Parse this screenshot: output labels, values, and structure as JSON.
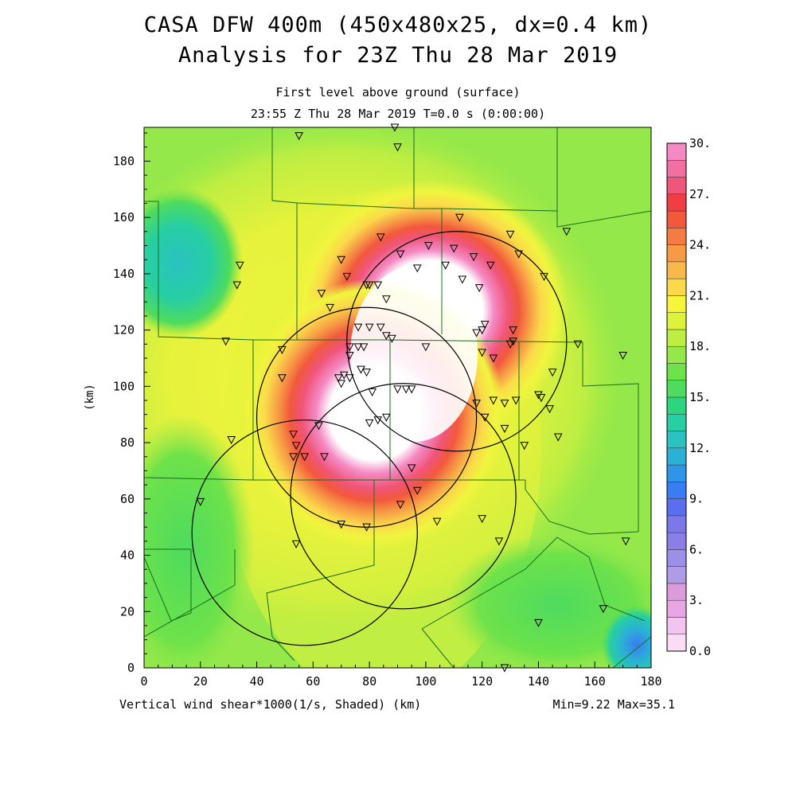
{
  "header": {
    "title_line1": "CASA DFW 400m (450x480x25, dx=0.4 km)",
    "title_line2": "Analysis for 23Z Thu 28 Mar 2019",
    "subtitle_level": "First level above ground (surface)",
    "subtitle_time": "23:55 Z Thu 28 Mar 2019    T=0.0 s (0:00:00)"
  },
  "footer": {
    "variable_label": "Vertical wind shear*1000(1/s, Shaded)  (km)",
    "minmax_label": "Min=9.22 Max=35.1"
  },
  "axes": {
    "x_ticks": [
      "0",
      "20",
      "40",
      "60",
      "80",
      "100",
      "120",
      "140",
      "160",
      "180"
    ],
    "y_ticks": [
      "0",
      "20",
      "40",
      "60",
      "80",
      "100",
      "120",
      "140",
      "160",
      "180"
    ],
    "y_label": "(km)",
    "x_range_km": [
      0,
      180
    ],
    "y_range_km": [
      0,
      192
    ]
  },
  "colorbar": {
    "labels": [
      "0.0",
      "3.",
      "6.",
      "9.",
      "12.",
      "15.",
      "18.",
      "21.",
      "24.",
      "27.",
      "30."
    ],
    "colors": [
      "#fbdcf5",
      "#f2c4ee",
      "#e8a7e4",
      "#dc9bdb",
      "#b09be6",
      "#9b8fe8",
      "#8a7fe6",
      "#7b78ea",
      "#5a6ff0",
      "#3a7cf2",
      "#2e96e6",
      "#2bb0d6",
      "#2ac2c2",
      "#27cfa2",
      "#2dd67c",
      "#4edb5e",
      "#6ee24a",
      "#94e84a",
      "#bdee42",
      "#ddf23a",
      "#f7f53a",
      "#fbd94a",
      "#f9b94a",
      "#f79a46",
      "#f47c42",
      "#f2583c",
      "#f03e42",
      "#f0557a",
      "#f26fa2",
      "#f48ac4"
    ]
  },
  "radar_circles_km": [
    {
      "cx": 111,
      "cy": 116,
      "r": 39
    },
    {
      "cx": 79,
      "cy": 89,
      "r": 39
    },
    {
      "cx": 92,
      "cy": 61,
      "r": 40
    },
    {
      "cx": 57,
      "cy": 48,
      "r": 40
    }
  ],
  "station_markers_km": [
    [
      55,
      189
    ],
    [
      89,
      192
    ],
    [
      90,
      185
    ],
    [
      112,
      160
    ],
    [
      130,
      154
    ],
    [
      150,
      155
    ],
    [
      34,
      143
    ],
    [
      33,
      136
    ],
    [
      70,
      145
    ],
    [
      84,
      153
    ],
    [
      91,
      147
    ],
    [
      97,
      142
    ],
    [
      101,
      150
    ],
    [
      107,
      143
    ],
    [
      110,
      149
    ],
    [
      113,
      138
    ],
    [
      117,
      146
    ],
    [
      119,
      135
    ],
    [
      123,
      143
    ],
    [
      133,
      147
    ],
    [
      142,
      139
    ],
    [
      63,
      133
    ],
    [
      66,
      128
    ],
    [
      72,
      139
    ],
    [
      79,
      136
    ],
    [
      80,
      136
    ],
    [
      83,
      136
    ],
    [
      86,
      131
    ],
    [
      76,
      121
    ],
    [
      80,
      121
    ],
    [
      84,
      121
    ],
    [
      86,
      118
    ],
    [
      88,
      117
    ],
    [
      118,
      119
    ],
    [
      120,
      120
    ],
    [
      121,
      122
    ],
    [
      131,
      120
    ],
    [
      130,
      115
    ],
    [
      131,
      116
    ],
    [
      29,
      116
    ],
    [
      49,
      113
    ],
    [
      73,
      114
    ],
    [
      76,
      114
    ],
    [
      78,
      114
    ],
    [
      73,
      111
    ],
    [
      120,
      112
    ],
    [
      124,
      110
    ],
    [
      100,
      114
    ],
    [
      154,
      115
    ],
    [
      170,
      111
    ],
    [
      77,
      106
    ],
    [
      79,
      105
    ],
    [
      73,
      103
    ],
    [
      71,
      104
    ],
    [
      69,
      103
    ],
    [
      70,
      101
    ],
    [
      49,
      103
    ],
    [
      145,
      105
    ],
    [
      81,
      98
    ],
    [
      90,
      99
    ],
    [
      93,
      99
    ],
    [
      95,
      99
    ],
    [
      140,
      97
    ],
    [
      141,
      96
    ],
    [
      118,
      94
    ],
    [
      124,
      95
    ],
    [
      128,
      94
    ],
    [
      132,
      95
    ],
    [
      144,
      92
    ],
    [
      121,
      89
    ],
    [
      62,
      86
    ],
    [
      80,
      87
    ],
    [
      83,
      88
    ],
    [
      86,
      89
    ],
    [
      53,
      83
    ],
    [
      54,
      79
    ],
    [
      57,
      75
    ],
    [
      64,
      75
    ],
    [
      53,
      75
    ],
    [
      31,
      81
    ],
    [
      135,
      79
    ],
    [
      128,
      85
    ],
    [
      147,
      82
    ],
    [
      95,
      71
    ],
    [
      97,
      63
    ],
    [
      91,
      58
    ],
    [
      20,
      59
    ],
    [
      120,
      53
    ],
    [
      104,
      52
    ],
    [
      70,
      51
    ],
    [
      79,
      50
    ],
    [
      126,
      45
    ],
    [
      171,
      45
    ],
    [
      54,
      44
    ],
    [
      140,
      16
    ],
    [
      163,
      21
    ],
    [
      128,
      0
    ]
  ]
}
